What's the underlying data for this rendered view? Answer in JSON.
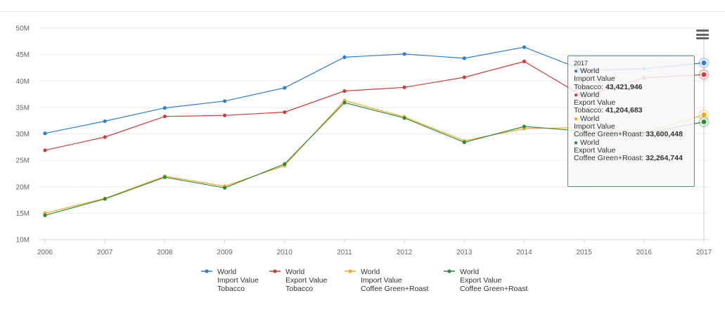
{
  "chart_data": {
    "type": "line",
    "title": "",
    "xlabel": "",
    "ylabel": "",
    "x": [
      "2006",
      "2007",
      "2008",
      "2009",
      "2010",
      "2011",
      "2012",
      "2013",
      "2014",
      "2015",
      "2016",
      "2017"
    ],
    "ylim": [
      10000000,
      50000000
    ],
    "yticks": [
      {
        "value": 10000000,
        "label": "10M"
      },
      {
        "value": 15000000,
        "label": "15M"
      },
      {
        "value": 20000000,
        "label": "20M"
      },
      {
        "value": 25000000,
        "label": "25M"
      },
      {
        "value": 30000000,
        "label": "30M"
      },
      {
        "value": 35000000,
        "label": "35M"
      },
      {
        "value": 40000000,
        "label": "40M"
      },
      {
        "value": 45000000,
        "label": "45M"
      },
      {
        "value": 50000000,
        "label": "50M"
      }
    ],
    "grid": true,
    "legend_position": "bottom",
    "highlighted_category": "2017",
    "series": [
      {
        "name_lines": [
          "World",
          "Import Value",
          "Tobacco"
        ],
        "color": "#2f7ed8",
        "values": [
          30100000,
          32400000,
          34900000,
          36200000,
          38700000,
          44500000,
          45100000,
          44300000,
          46400000,
          42000000,
          42300000,
          43421946
        ]
      },
      {
        "name_lines": [
          "World",
          "Export Value",
          "Tobacco"
        ],
        "color": "#d03b3b",
        "values": [
          26900000,
          29400000,
          33300000,
          33500000,
          34100000,
          38100000,
          38800000,
          40700000,
          43700000,
          37000000,
          40600000,
          41204683
        ]
      },
      {
        "name_lines": [
          "World",
          "Import Value",
          "Coffee Green+Roast"
        ],
        "color": "#f7a823",
        "values": [
          15000000,
          17800000,
          22000000,
          20100000,
          24000000,
          36300000,
          33200000,
          28700000,
          31000000,
          31200000,
          30200000,
          33600448
        ]
      },
      {
        "name_lines": [
          "World",
          "Export Value",
          "Coffee Green+Roast"
        ],
        "color": "#2e8b3c",
        "values": [
          14600000,
          17700000,
          21800000,
          19800000,
          24300000,
          35900000,
          33000000,
          28400000,
          31400000,
          30500000,
          30100000,
          32264744
        ]
      }
    ]
  },
  "tooltip": {
    "year": "2017",
    "entries": [
      {
        "line1": "World",
        "line2": "Import Value",
        "line3_prefix": "Tobacco: ",
        "value": "43,421,946"
      },
      {
        "line1": "World",
        "line2": "Export Value",
        "line3_prefix": "Tobacco: ",
        "value": "41,204,683"
      },
      {
        "line1": "World",
        "line2": "Import Value",
        "line3_prefix": "Coffee Green+Roast: ",
        "value": "33,600,448"
      },
      {
        "line1": "World",
        "line2": "Export Value",
        "line3_prefix": "Coffee Green+Roast: ",
        "value": "32,264,744"
      }
    ]
  },
  "menu": {
    "icon": "hamburger-menu-icon"
  }
}
